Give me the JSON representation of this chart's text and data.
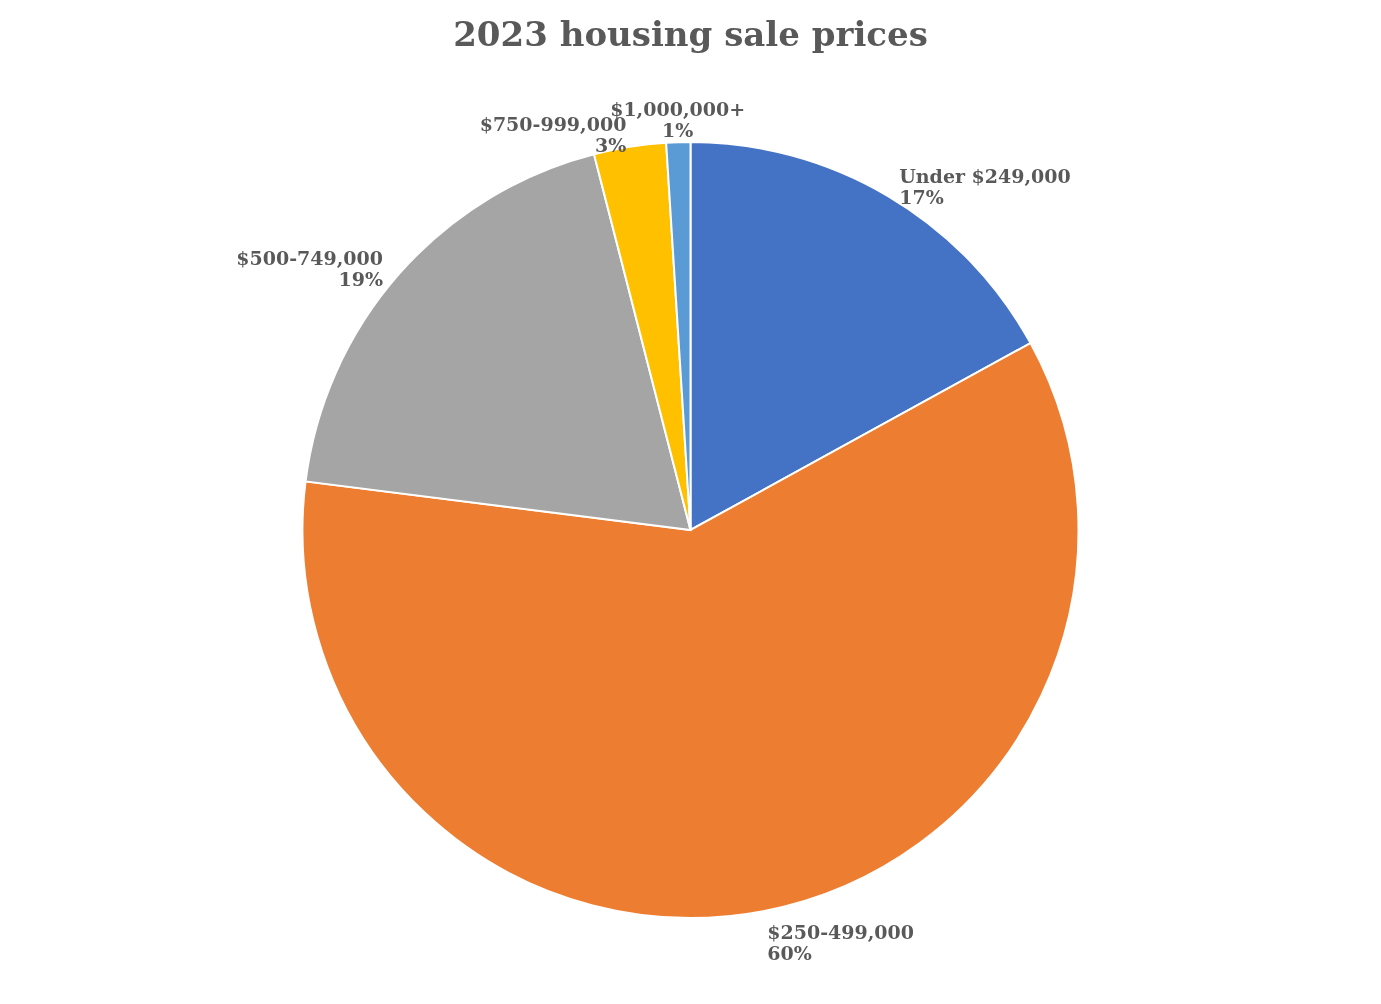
{
  "chart_data": {
    "type": "pie",
    "title": "2023 housing sale prices",
    "categories": [
      "Under $249,000",
      "$250-499,000",
      "$500-749,000",
      "$750-999,000",
      "$1,000,000+"
    ],
    "values": [
      17,
      60,
      19,
      3,
      1
    ],
    "value_labels": [
      "17%",
      "60%",
      "19%",
      "3%",
      "1%"
    ],
    "colors": [
      "#4472c4",
      "#ed7d31",
      "#a5a5a5",
      "#ffc000",
      "#5b9bd5"
    ],
    "legend": false
  }
}
